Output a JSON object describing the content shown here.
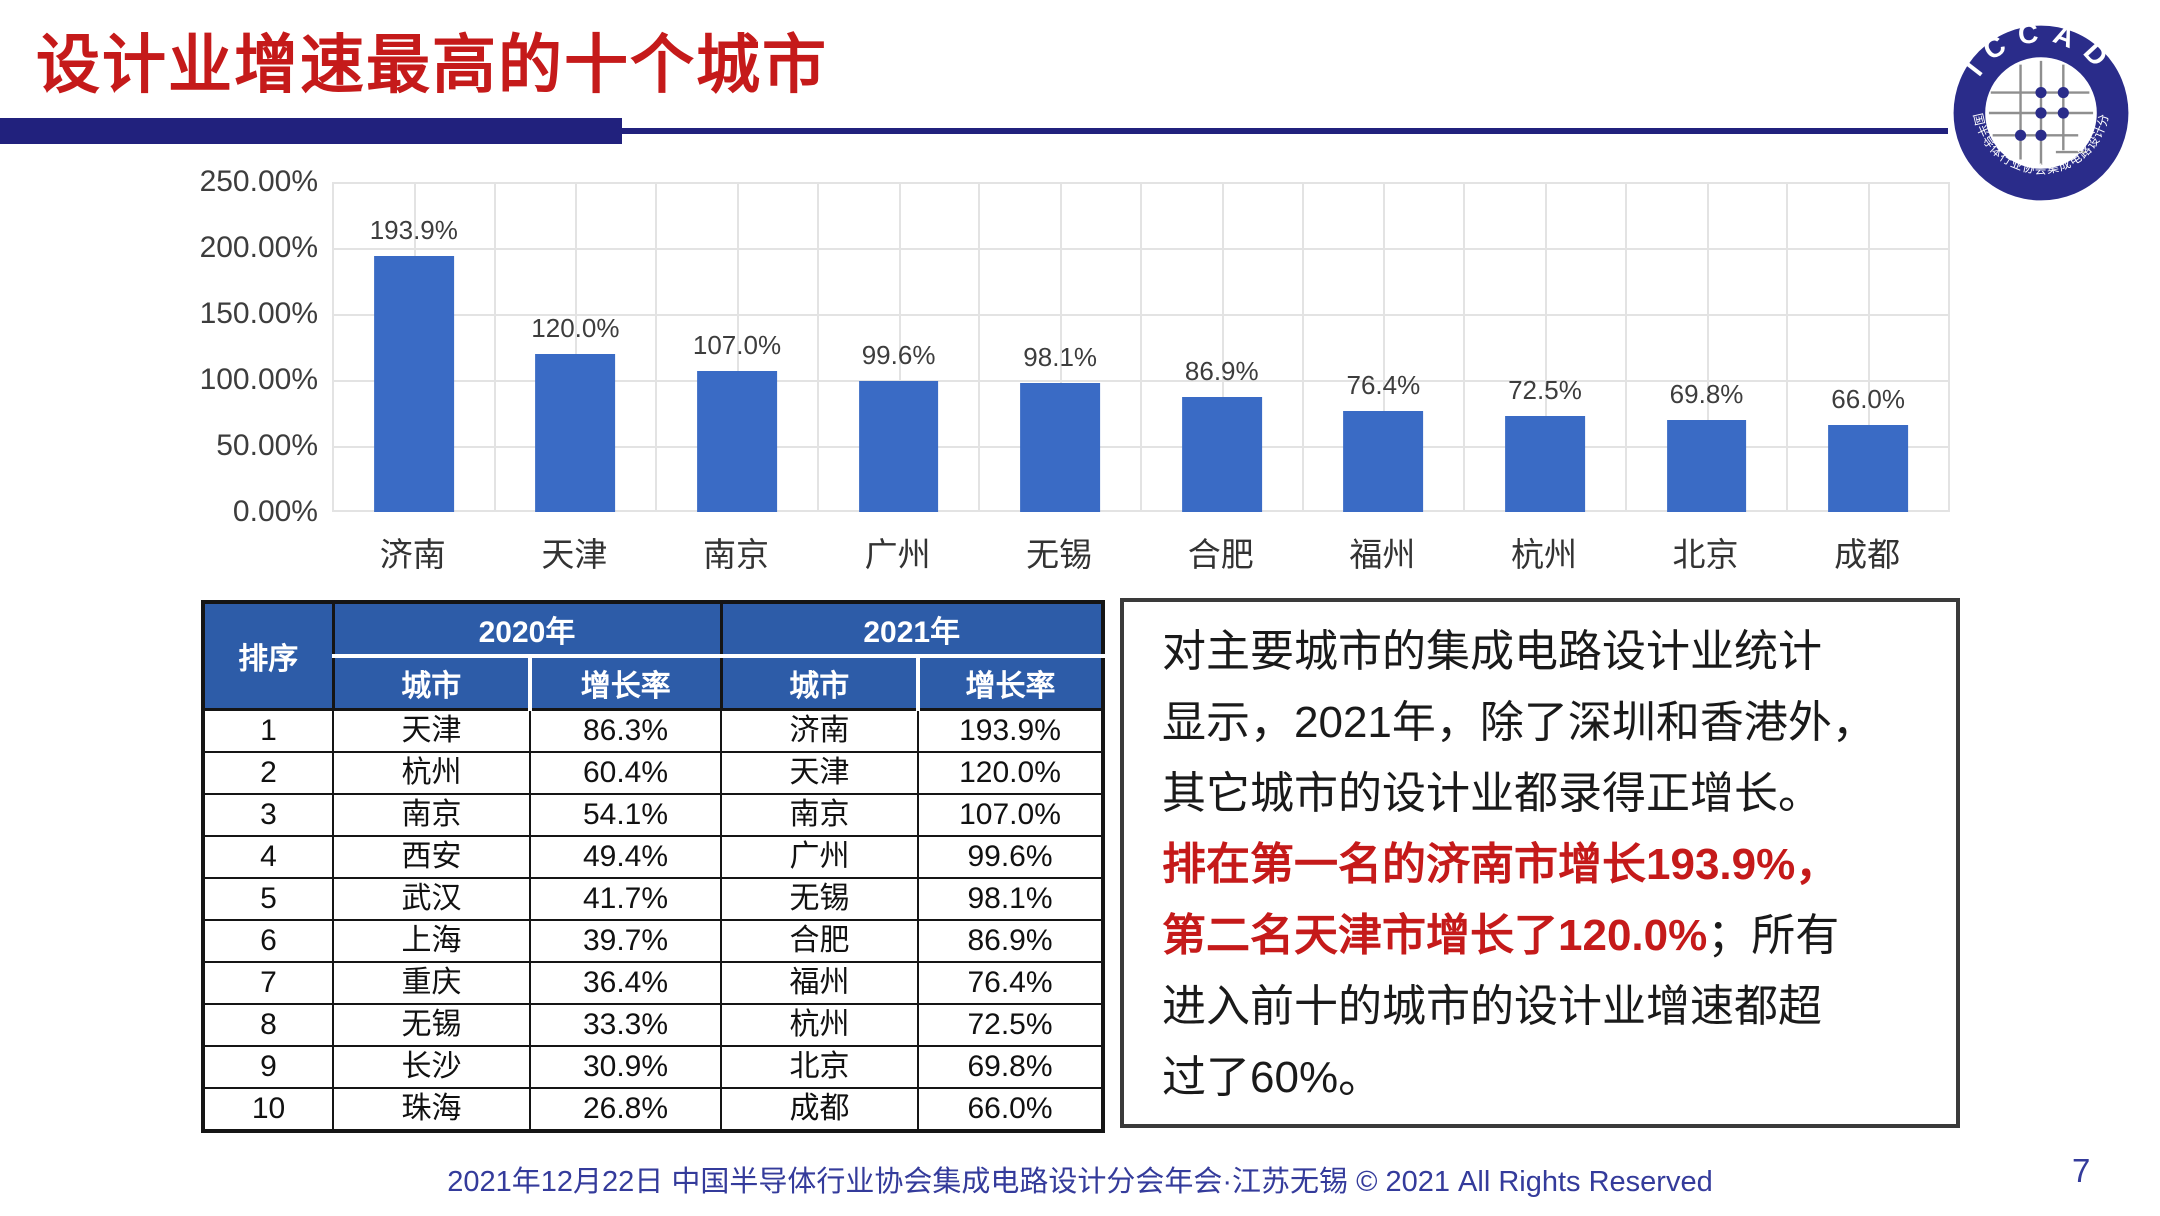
{
  "title": "设计业增速最高的十个城市",
  "logo": {
    "top_text": "ICCAD",
    "bottom_text": "中国半导体行业协会集成电路设计分会"
  },
  "chart_data": {
    "type": "bar",
    "title": "",
    "xlabel": "",
    "ylabel": "",
    "categories": [
      "济南",
      "天津",
      "南京",
      "广州",
      "无锡",
      "合肥",
      "福州",
      "杭州",
      "北京",
      "成都"
    ],
    "values": [
      193.9,
      120.0,
      107.0,
      99.6,
      98.1,
      86.9,
      76.4,
      72.5,
      69.8,
      66.0
    ],
    "labels": [
      "193.9%",
      "120.0%",
      "107.0%",
      "99.6%",
      "98.1%",
      "86.9%",
      "76.4%",
      "72.5%",
      "69.8%",
      "66.0%"
    ],
    "y_ticks": [
      "250.00%",
      "200.00%",
      "150.00%",
      "100.00%",
      "50.00%",
      "0.00%"
    ],
    "ylim": [
      0,
      250
    ],
    "ytick_step": 50,
    "grid": true,
    "legend": false
  },
  "table": {
    "rank_header": "排序",
    "group_headers": [
      "2020年",
      "2021年"
    ],
    "sub_headers": [
      "城市",
      "增长率",
      "城市",
      "增长率"
    ],
    "rows": [
      [
        "1",
        "天津",
        "86.3%",
        "济南",
        "193.9%"
      ],
      [
        "2",
        "杭州",
        "60.4%",
        "天津",
        "120.0%"
      ],
      [
        "3",
        "南京",
        "54.1%",
        "南京",
        "107.0%"
      ],
      [
        "4",
        "西安",
        "49.4%",
        "广州",
        "99.6%"
      ],
      [
        "5",
        "武汉",
        "41.7%",
        "无锡",
        "98.1%"
      ],
      [
        "6",
        "上海",
        "39.7%",
        "合肥",
        "86.9%"
      ],
      [
        "7",
        "重庆",
        "36.4%",
        "福州",
        "76.4%"
      ],
      [
        "8",
        "无锡",
        "33.3%",
        "杭州",
        "72.5%"
      ],
      [
        "9",
        "长沙",
        "30.9%",
        "北京",
        "69.8%"
      ],
      [
        "10",
        "珠海",
        "26.8%",
        "成都",
        "66.0%"
      ]
    ]
  },
  "note": {
    "segments": [
      {
        "text": "对主要城市的集成电路设计业统计\n显示，2021年，除了深圳和香港外，\n其它城市的设计业都录得正增长。\n",
        "color": "#1a1a1a",
        "bold": false
      },
      {
        "text": "排在第一名的济南市增长193.9%，\n第二名天津市增长了120.0%",
        "color": "#C51A1A",
        "bold": true
      },
      {
        "text": "；所有\n进入前十的城市的设计业增速都超\n过了60%。",
        "color": "#1a1a1a",
        "bold": false
      }
    ]
  },
  "footer": {
    "text": "2021年12月22日 中国半导体行业协会集成电路设计分会年会·江苏无锡 © 2021 All Rights Reserved",
    "page": "7"
  },
  "colors": {
    "title_red": "#C51A1A",
    "underline_navy": "#21217D",
    "bar_blue": "#3A6BC5",
    "table_header_blue": "#2D5CA8",
    "footer_navy": "#343B9B",
    "logo_navy": "#2A2C8A"
  }
}
